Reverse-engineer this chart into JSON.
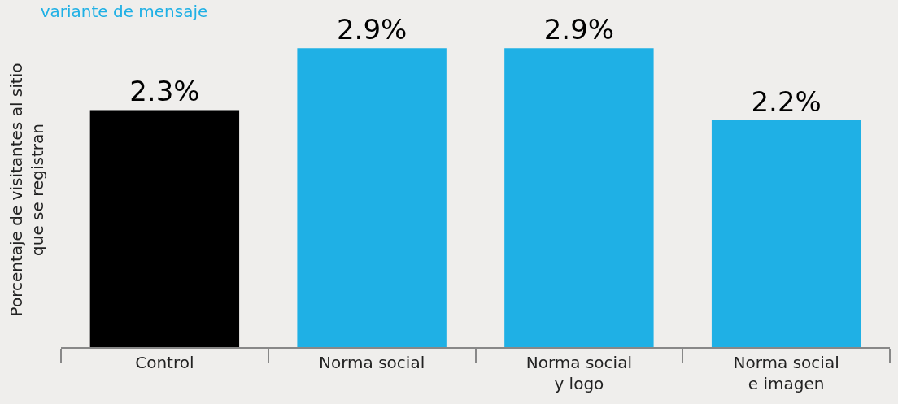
{
  "chart_data": {
    "type": "bar",
    "title": "variante de mensaje",
    "ylabel": "Porcentaje de visitantes al sitio\nque se registran",
    "categories": [
      "Control",
      "Norma social",
      "Norma social\ny logo",
      "Norma social\ne imagen"
    ],
    "values": [
      2.3,
      2.9,
      2.9,
      2.2
    ],
    "colors": [
      "#000000",
      "#1fb0e5",
      "#1fb0e5",
      "#1fb0e5"
    ],
    "value_labels": [
      "2.3%",
      "2.9%",
      "2.9%",
      "2.2%"
    ],
    "grid": false,
    "legend": false
  }
}
